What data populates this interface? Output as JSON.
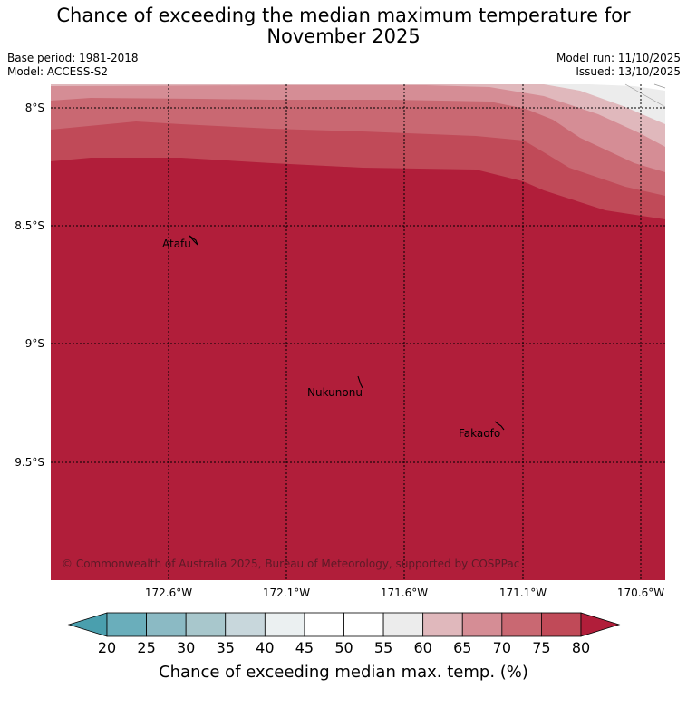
{
  "title_line1": "Chance of exceeding the median maximum temperature for",
  "title_line2": "November 2025",
  "meta": {
    "base_period": "Base period: 1981-2018",
    "model": "Model: ACCESS-S2",
    "model_run": "Model run: 11/10/2025",
    "issued": "Issued: 13/10/2025"
  },
  "map": {
    "lat_labels": [
      "8°S",
      "8.5°S",
      "9°S",
      "9.5°S"
    ],
    "lon_labels": [
      "172.6°W",
      "172.1°W",
      "171.6°W",
      "171.1°W",
      "170.6°W"
    ],
    "places": [
      {
        "name": "Atafu"
      },
      {
        "name": "Nukunonu"
      },
      {
        "name": "Fakaofo"
      }
    ],
    "copyright": "© Commonwealth of Australia 2025, Bureau of Meteorology, supported by COSPPac"
  },
  "colorbar": {
    "ticks": [
      "20",
      "25",
      "30",
      "35",
      "40",
      "45",
      "50",
      "55",
      "60",
      "65",
      "70",
      "75",
      "80"
    ],
    "colors": [
      "#6aaebb",
      "#8bbac4",
      "#a8c7cc",
      "#c8d7dc",
      "#ebf0f1",
      "#ffffff",
      "#ffffff",
      "#ececec",
      "#e0b8bc",
      "#d58d95",
      "#c96872",
      "#c04a58"
    ],
    "low_color": "#4a9fae",
    "high_color": "#b11e3a",
    "label": "Chance of exceeding median max. temp. (%)"
  }
}
